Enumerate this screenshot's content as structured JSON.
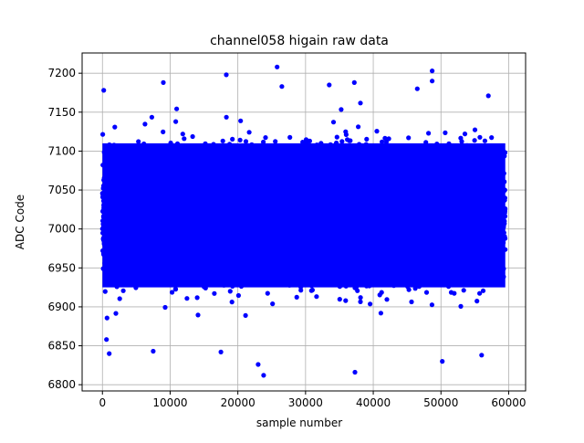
{
  "chart_data": {
    "type": "scatter",
    "title": "channel058 higain raw data",
    "xlabel": "sample number",
    "ylabel": "ADC Code",
    "xlim": [
      -3000,
      62500
    ],
    "ylim": [
      6792,
      7226
    ],
    "xticks": [
      0,
      10000,
      20000,
      30000,
      40000,
      50000,
      60000
    ],
    "xtick_labels": [
      "0",
      "10000",
      "20000",
      "30000",
      "40000",
      "50000",
      "60000"
    ],
    "yticks": [
      6800,
      6850,
      6900,
      6950,
      7000,
      7050,
      7100,
      7150,
      7200
    ],
    "ytick_labels": [
      "6800",
      "6850",
      "6900",
      "6950",
      "7000",
      "7050",
      "7100",
      "7150",
      "7200"
    ],
    "grid": true,
    "marker_color": "#0000ff",
    "series": [
      {
        "n_samples": 60000,
        "x_range": [
          0,
          59500
        ],
        "mean": 7018,
        "dense_band": [
          6925,
          7110
        ],
        "outliers": [
          {
            "x": 200,
            "y": 7178
          },
          {
            "x": 9000,
            "y": 7188
          },
          {
            "x": 18300,
            "y": 7198
          },
          {
            "x": 25800,
            "y": 7208
          },
          {
            "x": 26500,
            "y": 7183
          },
          {
            "x": 33500,
            "y": 7185
          },
          {
            "x": 37200,
            "y": 7188
          },
          {
            "x": 46500,
            "y": 7180
          },
          {
            "x": 48700,
            "y": 7203
          },
          {
            "x": 48700,
            "y": 7190
          },
          {
            "x": 57000,
            "y": 7171
          },
          {
            "x": 23000,
            "y": 6826
          },
          {
            "x": 23800,
            "y": 6812
          },
          {
            "x": 37300,
            "y": 6816
          },
          {
            "x": 50200,
            "y": 6830
          },
          {
            "x": 600,
            "y": 6858
          },
          {
            "x": 1000,
            "y": 6840
          },
          {
            "x": 7500,
            "y": 6843
          },
          {
            "x": 17500,
            "y": 6842
          },
          {
            "x": 56000,
            "y": 6838
          }
        ]
      }
    ]
  }
}
